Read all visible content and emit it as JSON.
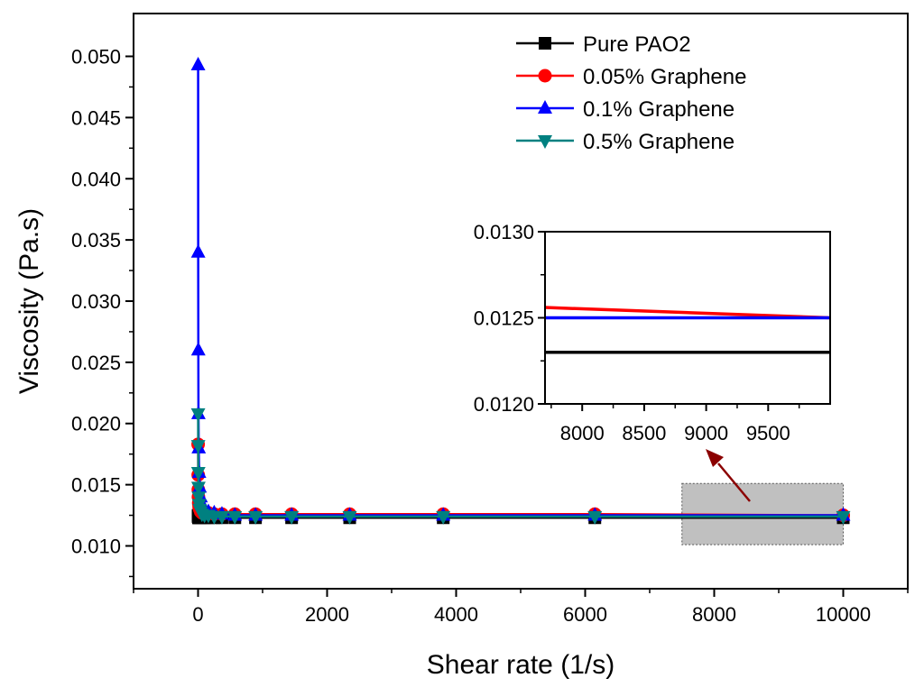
{
  "chart_data": {
    "type": "line",
    "xlabel": "Shear rate (1/s)",
    "ylabel": "Viscosity (Pa.s)",
    "xlim": [
      -1000,
      11000
    ],
    "ylim": [
      0.0065,
      0.0535
    ],
    "xticks": [
      0,
      2000,
      4000,
      6000,
      8000,
      10000
    ],
    "xtick_labels": [
      "0",
      "2000",
      "4000",
      "6000",
      "8000",
      "10000"
    ],
    "yticks": [
      0.01,
      0.015,
      0.02,
      0.025,
      0.03,
      0.035,
      0.04,
      0.045,
      0.05
    ],
    "ytick_labels": [
      "0.010",
      "0.015",
      "0.020",
      "0.025",
      "0.030",
      "0.035",
      "0.040",
      "0.045",
      "0.050"
    ],
    "legend_position": "top-right",
    "series": [
      {
        "name": "Pure PAO2",
        "color": "#000000",
        "marker": "square",
        "x": [
          1,
          2,
          4,
          6,
          10,
          16,
          25,
          40,
          60,
          100,
          160,
          250,
          370,
          570,
          890,
          1450,
          2350,
          3800,
          6150,
          10000
        ],
        "y": [
          0.0125,
          0.0124,
          0.0124,
          0.0123,
          0.0123,
          0.0123,
          0.0123,
          0.0123,
          0.0123,
          0.0123,
          0.0123,
          0.0123,
          0.0123,
          0.0123,
          0.0123,
          0.0123,
          0.0123,
          0.0123,
          0.0123,
          0.0123
        ]
      },
      {
        "name": "0.05% Graphene",
        "color": "#ff0000",
        "marker": "circle",
        "x": [
          1,
          2,
          4,
          6,
          10,
          16,
          25,
          40,
          60,
          100,
          160,
          250,
          370,
          570,
          890,
          1450,
          2350,
          3800,
          6150,
          10000
        ],
        "y": [
          0.0183,
          0.0158,
          0.0146,
          0.014,
          0.0135,
          0.0132,
          0.013,
          0.0128,
          0.0127,
          0.0127,
          0.0127,
          0.0126,
          0.0126,
          0.0126,
          0.0126,
          0.0126,
          0.0126,
          0.0126,
          0.0126,
          0.0125
        ]
      },
      {
        "name": "0.1% Graphene",
        "color": "#0000ff",
        "marker": "triangle-up",
        "x": [
          1,
          2,
          4,
          6,
          10,
          16,
          25,
          40,
          60,
          100,
          160,
          250,
          370,
          570,
          890,
          1450,
          2350,
          3800,
          6150,
          10000
        ],
        "y": [
          0.0493,
          0.034,
          0.026,
          0.0208,
          0.018,
          0.016,
          0.0148,
          0.014,
          0.0134,
          0.013,
          0.0128,
          0.0127,
          0.0126,
          0.0125,
          0.0125,
          0.0125,
          0.0125,
          0.0125,
          0.0125,
          0.0125
        ]
      },
      {
        "name": "0.5% Graphene",
        "color": "#008080",
        "marker": "triangle-down",
        "x": [
          1,
          2,
          4,
          6,
          10,
          16,
          25,
          40,
          60,
          100,
          160,
          250,
          370,
          570,
          890,
          1450,
          2350,
          3800,
          6150,
          10000
        ],
        "y": [
          0.0208,
          0.0182,
          0.016,
          0.0148,
          0.014,
          0.0134,
          0.013,
          0.0128,
          0.0126,
          0.0125,
          0.0125,
          0.0124,
          0.0124,
          0.0124,
          0.0124,
          0.0124,
          0.0124,
          0.0124,
          0.0124,
          0.0124
        ]
      }
    ],
    "zoom_region": {
      "x": [
        7500,
        10000
      ],
      "y": [
        0.0101,
        0.0151
      ]
    },
    "inset": {
      "xlim": [
        7700,
        10000
      ],
      "ylim": [
        0.012,
        0.013
      ],
      "xticks": [
        8000,
        8500,
        9000,
        9500
      ],
      "xtick_labels": [
        "8000",
        "8500",
        "9000",
        "9500"
      ],
      "yticks": [
        0.012,
        0.0125,
        0.013
      ],
      "ytick_labels": [
        "0.0120",
        "0.0125",
        "0.0130"
      ],
      "series": [
        {
          "name": "Pure PAO2",
          "color": "#000000",
          "x": [
            7700,
            10000
          ],
          "y": [
            0.0123,
            0.0123
          ]
        },
        {
          "name": "0.05% Graphene",
          "color": "#ff0000",
          "x": [
            7700,
            10000
          ],
          "y": [
            0.01256,
            0.0125
          ]
        },
        {
          "name": "0.1% Graphene",
          "color": "#0000ff",
          "x": [
            7700,
            10000
          ],
          "y": [
            0.0125,
            0.0125
          ]
        }
      ]
    },
    "arrow_color": "#8b0000"
  }
}
